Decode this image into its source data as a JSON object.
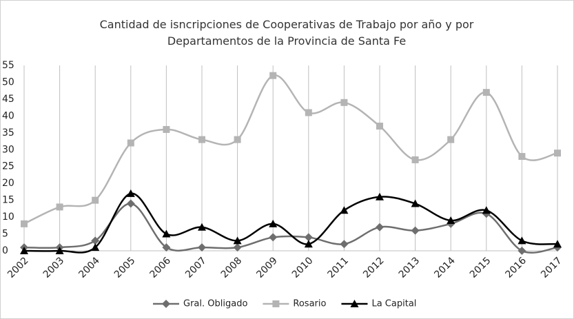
{
  "chart_data": {
    "type": "line",
    "title": "Cantidad de isncripciones de  Cooperativas de Trabajo por año y por Departamentos de la Provincia de Santa Fe",
    "categories": [
      "2002",
      "2003",
      "2004",
      "2005",
      "2006",
      "2007",
      "2008",
      "2009",
      "2010",
      "2011",
      "2012",
      "2013",
      "2014",
      "2015",
      "2016",
      "2017"
    ],
    "series": [
      {
        "name": "Gral. Obligado",
        "color": "#6e6e6e",
        "marker": "diamond",
        "values": [
          1,
          1,
          3,
          14,
          1,
          1,
          1,
          4,
          4,
          2,
          7,
          6,
          8,
          11,
          0,
          1
        ]
      },
      {
        "name": "Rosario",
        "color": "#b4b4b4",
        "marker": "square",
        "values": [
          8,
          13,
          15,
          32,
          36,
          33,
          33,
          52,
          41,
          44,
          37,
          27,
          33,
          47,
          28,
          29
        ]
      },
      {
        "name": "La Capital",
        "color": "#000000",
        "marker": "triangle",
        "values": [
          0,
          0,
          1,
          17,
          5,
          7,
          3,
          8,
          2,
          12,
          16,
          14,
          9,
          12,
          3,
          2
        ]
      }
    ],
    "ylim": [
      0,
      55
    ],
    "yticks": [
      0,
      5,
      10,
      15,
      20,
      25,
      30,
      35,
      40,
      45,
      50,
      55
    ],
    "grid": "vertical",
    "smooth": true,
    "legend": "bottom"
  }
}
